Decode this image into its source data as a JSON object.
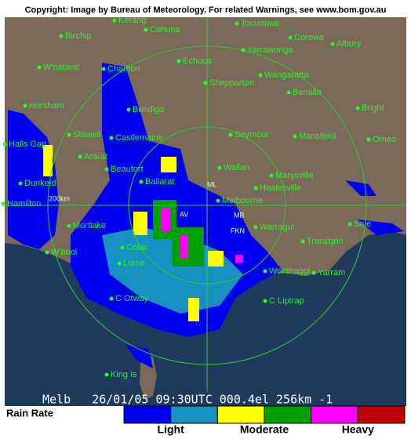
{
  "header": {
    "copyright": "Copyright: Image by Bureau of Meteorology. For related Warnings, see www.bom.gov.au"
  },
  "towns": [
    "Kerang",
    "Cohuna",
    "Tocumwal",
    "Corowa",
    "Albury",
    "Birchip",
    "Echuca",
    "Yarrawonga",
    "W'nabeal",
    "Charlton",
    "Shepparton",
    "Wangaratta",
    "Benalla",
    "Horsham",
    "Bendigo",
    "Bright",
    "Stawell",
    "Castlemaine",
    "Seymour",
    "Mansfield",
    "Omeo",
    "Halls Gap",
    "Ararat",
    "Beaufort",
    "Wallan",
    "Marysville",
    "Dunkeld",
    "Ballarat",
    "Healesville",
    "Hamilton",
    "Melbourne",
    "Sale",
    "Mortlake",
    "Warragul",
    "Traralgon",
    "W'bool",
    "Colac",
    "Lorne",
    "Wonthaggi",
    "Yarram",
    "C Otway",
    "C Liptrap",
    "King Is"
  ],
  "radar_marks": [
    "ML",
    "AV",
    "MB",
    "FKN",
    "200km"
  ],
  "status_bar": "Melb   26/01/05 09:30UTC 000.4el 256km -1",
  "legend": {
    "title": "Rain Rate",
    "colors": [
      "#0000f0",
      "#1890c0",
      "#ffff00",
      "#00a000",
      "#ff00ff",
      "#c00000"
    ],
    "labels": [
      "Light",
      "Moderate",
      "Heavy"
    ]
  }
}
